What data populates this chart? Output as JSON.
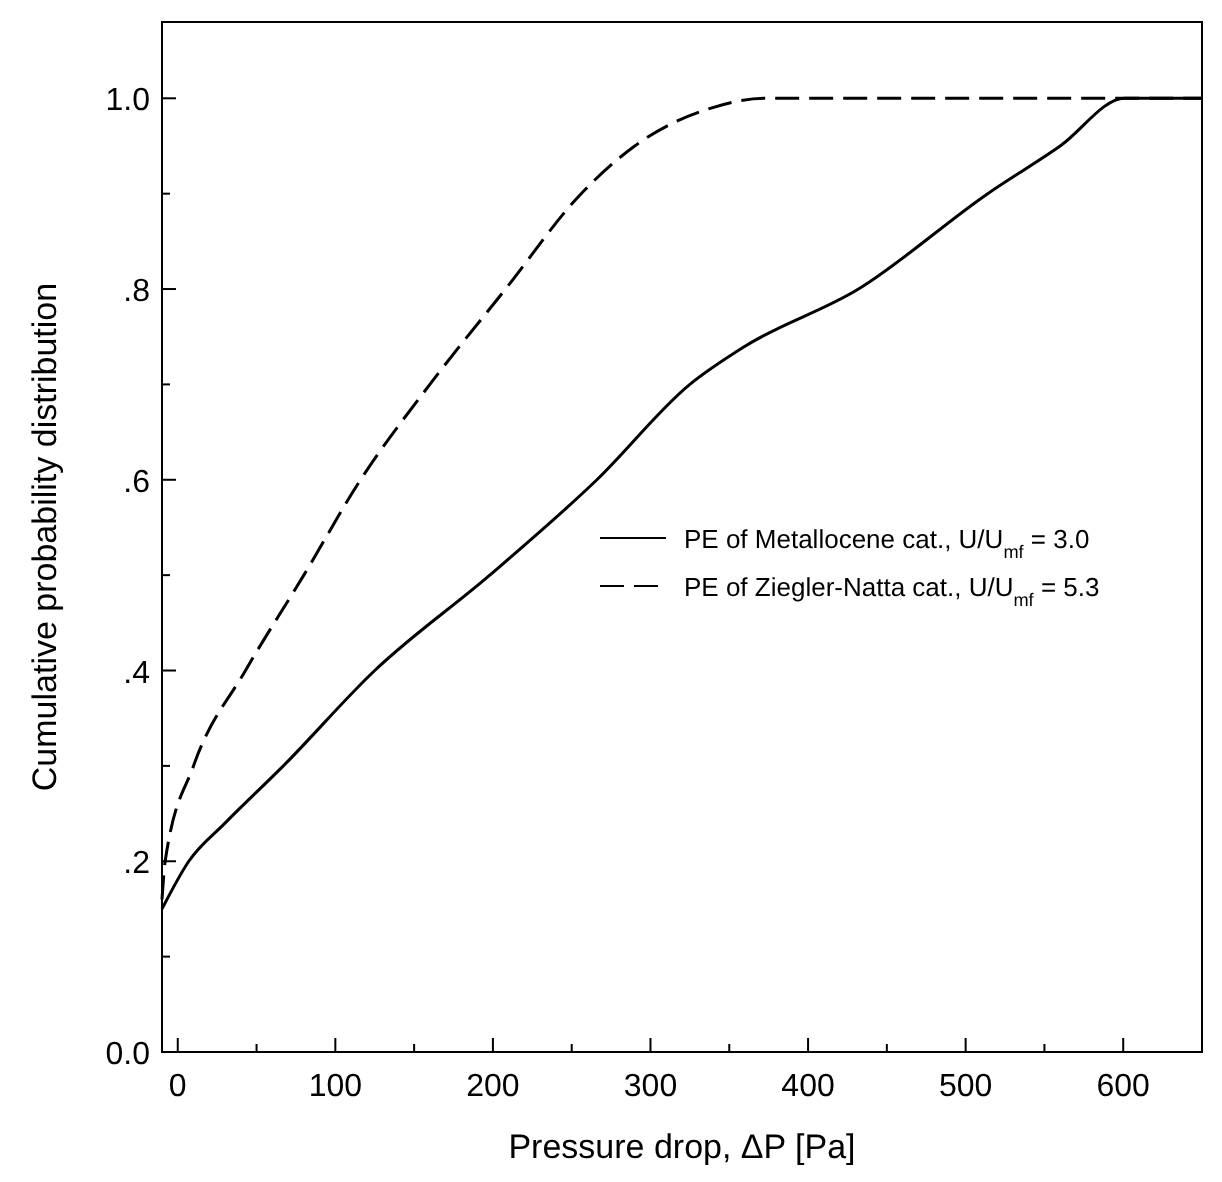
{
  "chart_data": {
    "type": "line",
    "xlabel": "Pressure drop, ΔP [Pa]",
    "ylabel": "Cumulative probability distribution",
    "xlim": [
      -10,
      650
    ],
    "ylim": [
      0,
      1.08
    ],
    "xticks": [
      0,
      {
        "value": 50,
        "label": null
      },
      100,
      {
        "value": 150,
        "label": null
      },
      200,
      {
        "value": 250,
        "label": null
      },
      300,
      {
        "value": 350,
        "label": null
      },
      400,
      {
        "value": 450,
        "label": null
      },
      500,
      {
        "value": 550,
        "label": null
      },
      600
    ],
    "yticks": [
      {
        "value": 0,
        "label": "0.0"
      },
      {
        "value": 0.1,
        "label": null
      },
      {
        "value": 0.2,
        "label": ".2"
      },
      {
        "value": 0.3,
        "label": null
      },
      {
        "value": 0.4,
        "label": ".4"
      },
      {
        "value": 0.5,
        "label": null
      },
      {
        "value": 0.6,
        "label": ".6"
      },
      {
        "value": 0.7,
        "label": null
      },
      {
        "value": 0.8,
        "label": ".8"
      },
      {
        "value": 0.9,
        "label": null
      },
      {
        "value": 1.0,
        "label": "1.0"
      }
    ],
    "grid": false,
    "legend": "right",
    "marker": "none",
    "series": [
      {
        "name": "PE of Metallocene cat.,  U/U$_{mf}$ = 3.0",
        "color": "#000000",
        "line_style": "solid",
        "x": [
          -10,
          7,
          30,
          67,
          125,
          198,
          266,
          325,
          360,
          432,
          514,
          560,
          601,
          620,
          650
        ],
        "values": [
          0.15,
          0.2,
          0.24,
          0.3,
          0.4,
          0.5,
          0.6,
          0.7,
          0.74,
          0.8,
          0.9,
          0.95,
          1.0,
          1.0,
          1.0
        ]
      },
      {
        "name": "PE of Ziegler-Natta cat.,  U/U$_{mf}$ = 5.3",
        "color": "#000000",
        "line_style": "dashed",
        "x": [
          -10,
          -8,
          10,
          43,
          80,
          116,
          160,
          208,
          256,
          290,
          339,
          373,
          500,
          650
        ],
        "values": [
          0.16,
          0.2,
          0.3,
          0.4,
          0.5,
          0.6,
          0.7,
          0.8,
          0.9,
          0.95,
          0.99,
          1.0,
          1.0,
          1.0
        ]
      }
    ]
  }
}
